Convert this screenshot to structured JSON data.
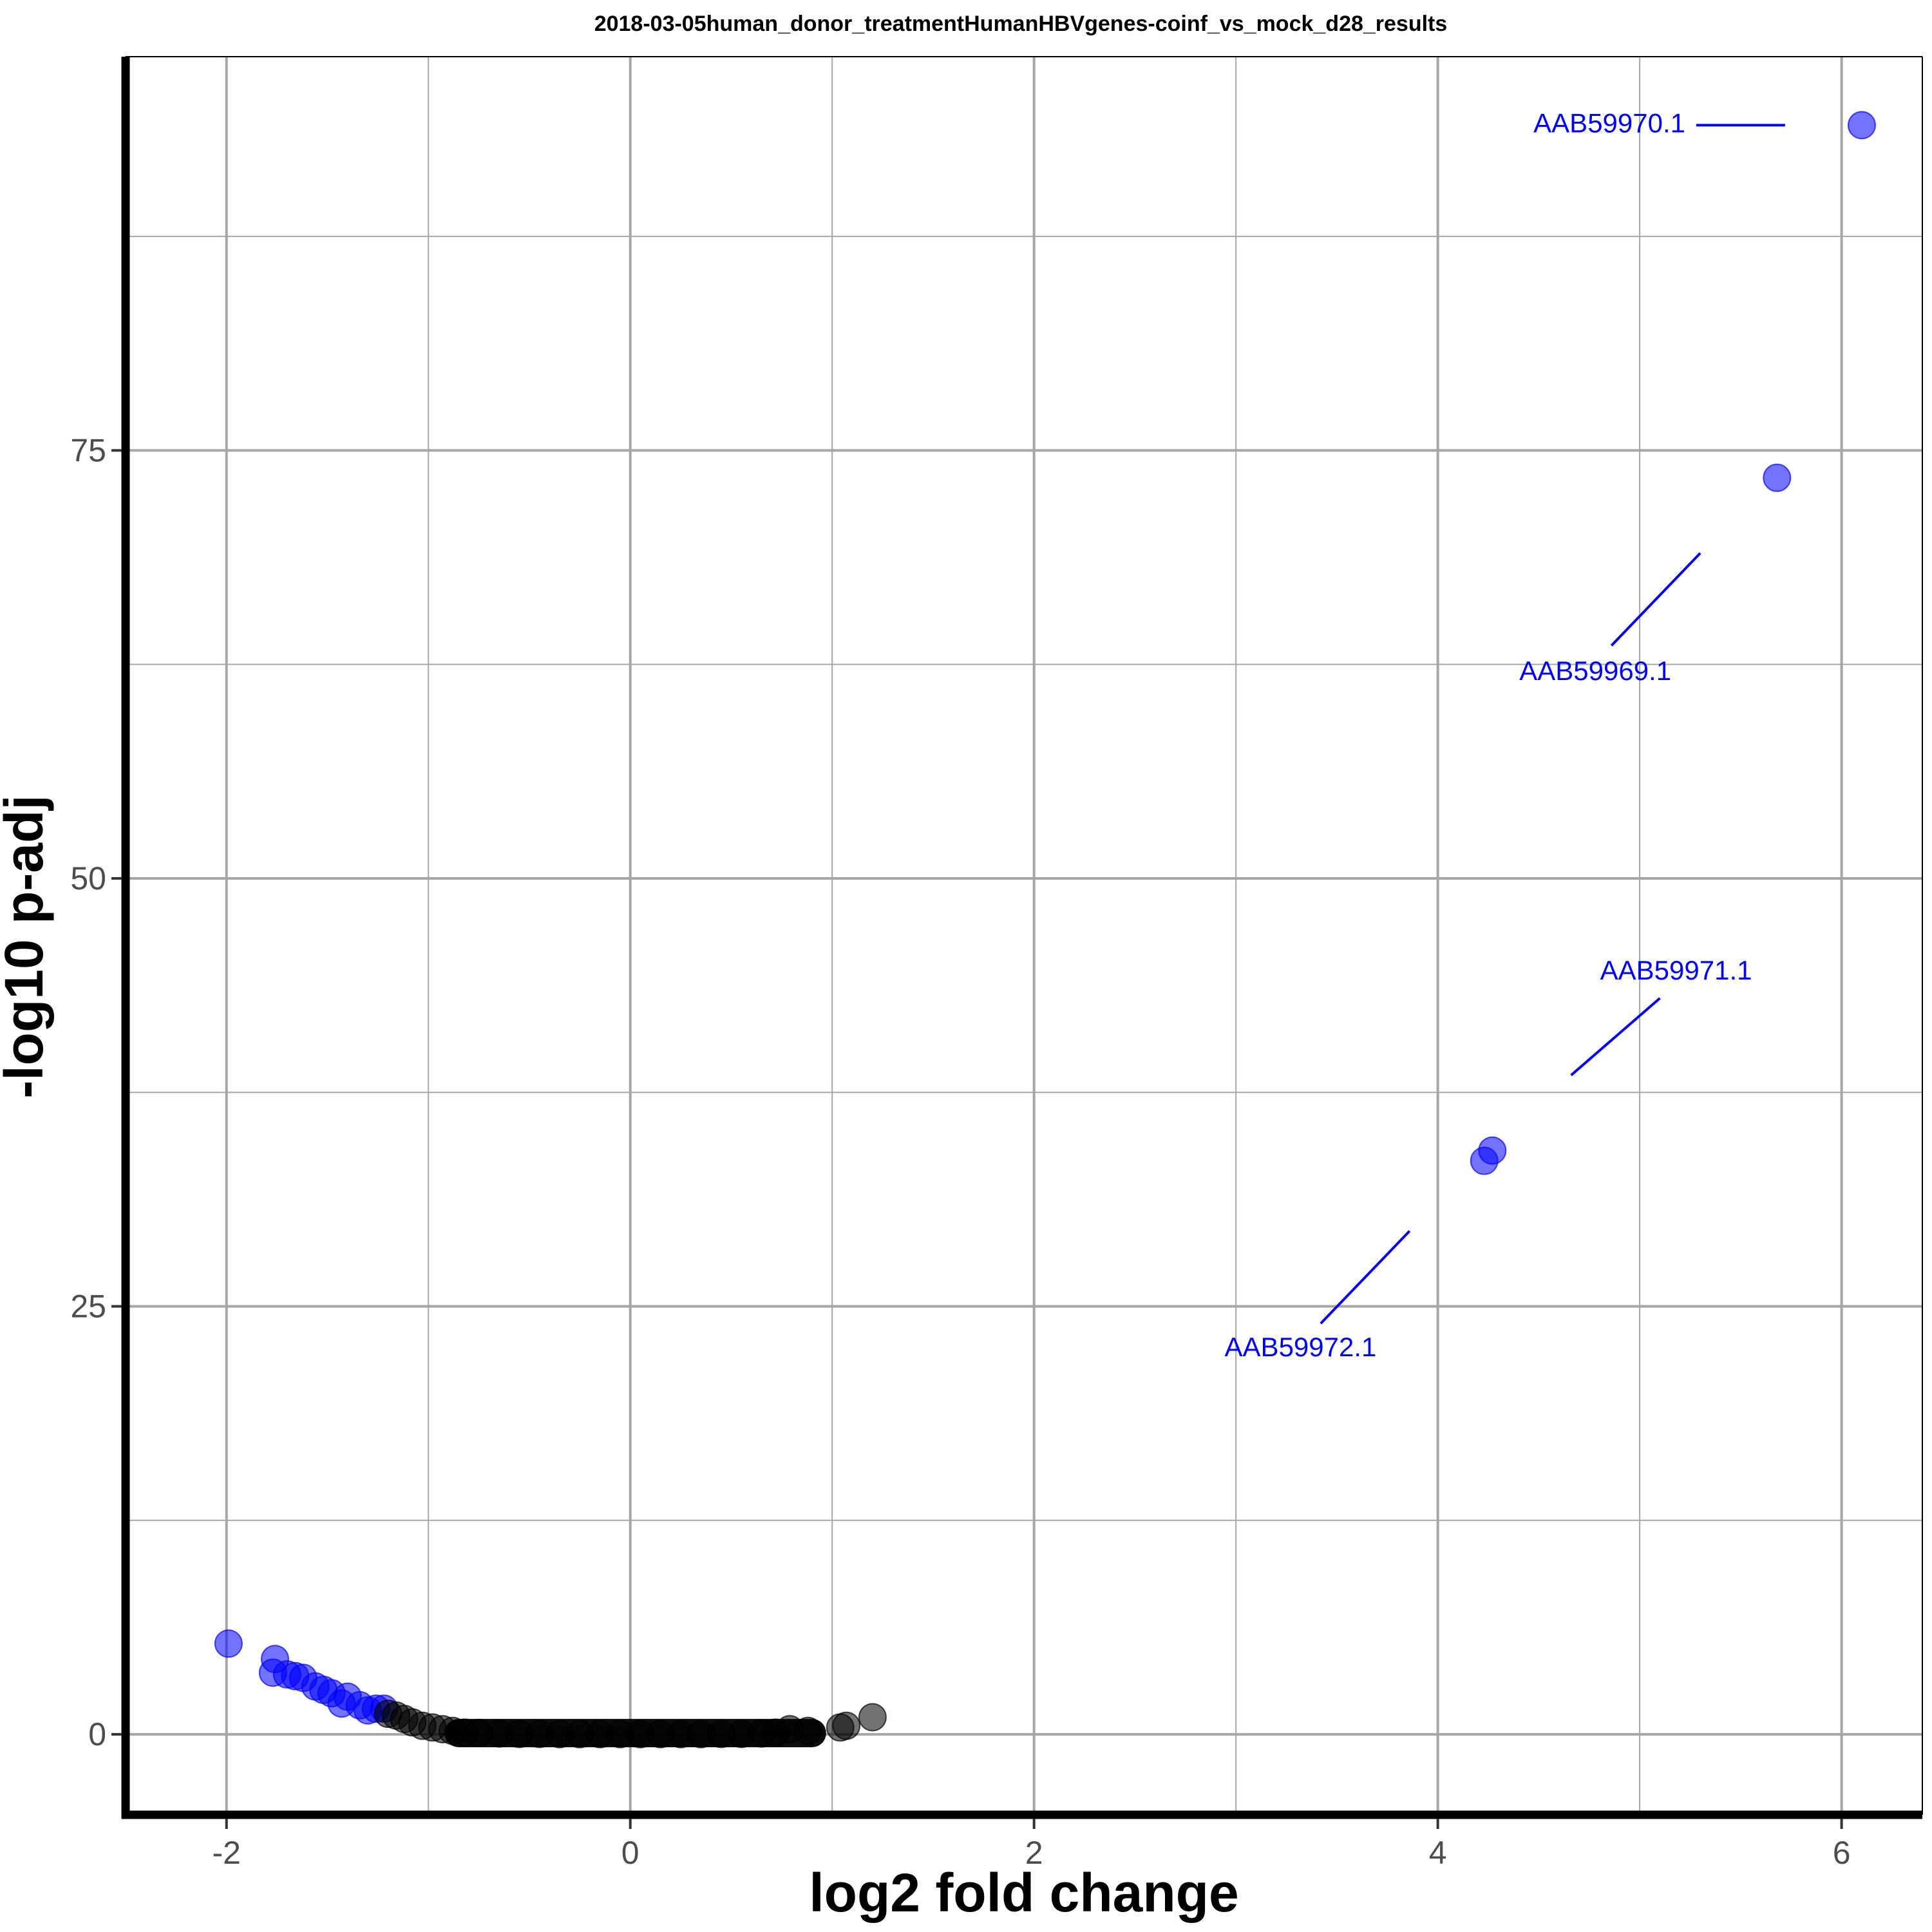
{
  "chart_data": {
    "type": "scatter",
    "title": "2018-03-05human_donor_treatmentHumanHBVgenes-coinf_vs_mock_d28_results",
    "xlabel": "log2 fold change",
    "ylabel": "-log10 p-adj",
    "xlim": [
      -2.5,
      6.4
    ],
    "ylim": [
      -4.7,
      98
    ],
    "x_ticks": [
      -2,
      0,
      2,
      4,
      6
    ],
    "x_tick_labels": [
      "-2",
      "0",
      "2",
      "4",
      "6"
    ],
    "y_ticks": [
      0,
      25,
      50,
      75
    ],
    "y_tick_labels": [
      "0",
      "25",
      "50",
      "75"
    ],
    "grid": true,
    "legend": "none",
    "colors": {
      "significant": "#0000ff",
      "not_significant": "#000000",
      "grid": "#a6a6a6",
      "label": "#0000ff"
    },
    "series": [
      {
        "key": "significant",
        "points": [
          [
            6.1,
            94.0
          ],
          [
            5.68,
            73.4
          ],
          [
            4.27,
            34.1
          ],
          [
            4.23,
            33.5
          ],
          [
            -1.99,
            5.3
          ],
          [
            -1.76,
            4.4
          ],
          [
            -1.77,
            3.6
          ],
          [
            -1.7,
            3.5
          ],
          [
            -1.66,
            3.4
          ],
          [
            -1.62,
            3.3
          ],
          [
            -1.56,
            2.8
          ],
          [
            -1.52,
            2.6
          ],
          [
            -1.48,
            2.4
          ],
          [
            -1.4,
            2.2
          ],
          [
            -1.43,
            1.8
          ],
          [
            -1.34,
            1.7
          ],
          [
            -1.3,
            1.4
          ],
          [
            -1.26,
            1.5
          ],
          [
            -1.22,
            1.5
          ]
        ]
      },
      {
        "key": "not_significant",
        "points": [
          [
            1.2,
            1.0
          ],
          [
            1.07,
            0.5
          ],
          [
            1.04,
            0.4
          ],
          [
            0.88,
            0.2
          ],
          [
            0.79,
            0.3
          ],
          [
            0.72,
            0.1
          ],
          [
            0.65,
            0.05
          ],
          [
            0.55,
            0.02
          ],
          [
            0.45,
            0.02
          ],
          [
            0.35,
            0.01
          ],
          [
            0.25,
            0.01
          ],
          [
            0.15,
            0.01
          ],
          [
            0.05,
            0.01
          ],
          [
            -0.05,
            0.01
          ],
          [
            -0.15,
            0.01
          ],
          [
            -0.25,
            0.01
          ],
          [
            -0.35,
            0.01
          ],
          [
            -0.45,
            0.02
          ],
          [
            -0.55,
            0.02
          ],
          [
            -0.65,
            0.05
          ],
          [
            -0.75,
            0.08
          ],
          [
            -0.82,
            0.1
          ],
          [
            -0.88,
            0.2
          ],
          [
            -0.93,
            0.3
          ],
          [
            -0.98,
            0.4
          ],
          [
            -1.03,
            0.5
          ],
          [
            -1.08,
            0.7
          ],
          [
            -1.12,
            0.9
          ],
          [
            -1.16,
            1.1
          ],
          [
            -1.2,
            1.2
          ]
        ]
      }
    ],
    "band": {
      "x_from": -0.85,
      "x_to": 0.9,
      "y": 0
    },
    "annotations": [
      {
        "label": "AAB59970.1",
        "point": [
          6.1,
          94.0
        ],
        "line_from": [
          5.72,
          94.0
        ],
        "line_to": [
          5.28,
          94.0
        ],
        "text_at": [
          4.85,
          94.0
        ]
      },
      {
        "label": "AAB59969.1",
        "point": [
          5.68,
          73.4
        ],
        "line_from": [
          5.3,
          69.0
        ],
        "line_to": [
          4.86,
          63.6
        ],
        "text_at": [
          4.78,
          62.0
        ]
      },
      {
        "label": "AAB59971.1",
        "point": [
          4.27,
          34.1
        ],
        "line_from": [
          4.66,
          38.5
        ],
        "line_to": [
          5.1,
          43.0
        ],
        "text_at": [
          5.18,
          44.5
        ]
      },
      {
        "label": "AAB59972.1",
        "point": [
          4.23,
          33.5
        ],
        "line_from": [
          3.86,
          29.4
        ],
        "line_to": [
          3.42,
          24.0
        ],
        "text_at": [
          3.32,
          22.5
        ]
      }
    ]
  }
}
